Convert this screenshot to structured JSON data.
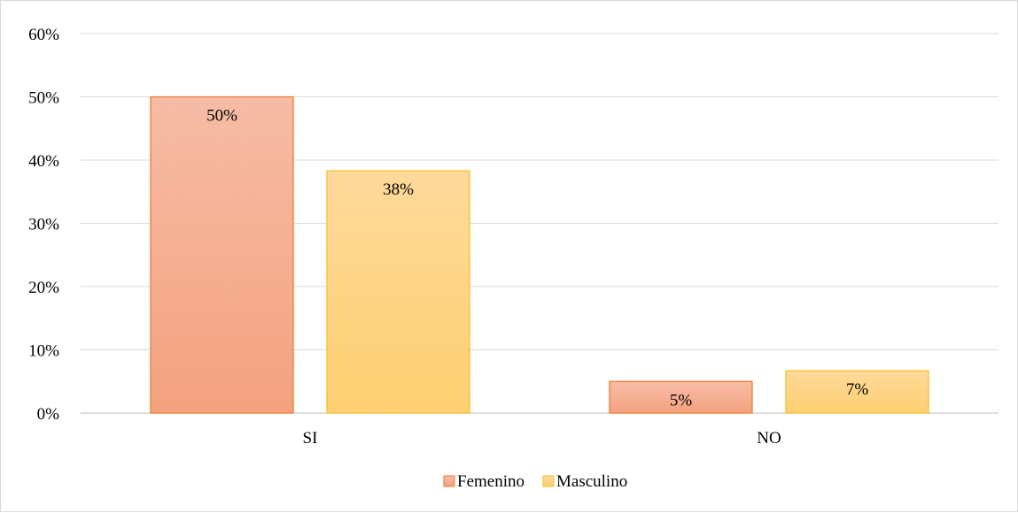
{
  "chart_data": {
    "type": "bar",
    "categories": [
      "SI",
      "NO"
    ],
    "series": [
      {
        "name": "Femenino",
        "values": [
          50,
          5
        ],
        "data_labels": [
          "50%",
          "5%"
        ],
        "fill_top": "#f6bca6",
        "fill_bottom": "#f4a27f",
        "stroke": "#ed7d31"
      },
      {
        "name": "Masculino",
        "values": [
          38.3,
          6.7
        ],
        "data_labels": [
          "38%",
          "7%"
        ],
        "fill_top": "#fed99a",
        "fill_bottom": "#fed071",
        "stroke": "#f5c02d"
      }
    ],
    "y_ticks": [
      0,
      10,
      20,
      30,
      40,
      50,
      60
    ],
    "y_tick_labels": [
      "0%",
      "10%",
      "20%",
      "30%",
      "40%",
      "50%",
      "60%"
    ],
    "ylim": [
      0,
      60
    ],
    "grid": true,
    "legend_position": "bottom",
    "title": "",
    "xlabel": "",
    "ylabel": ""
  },
  "colors": {
    "gridline": "#d9d9d9",
    "axis": "#bfbfbf",
    "frame": "#d9d9d9"
  }
}
